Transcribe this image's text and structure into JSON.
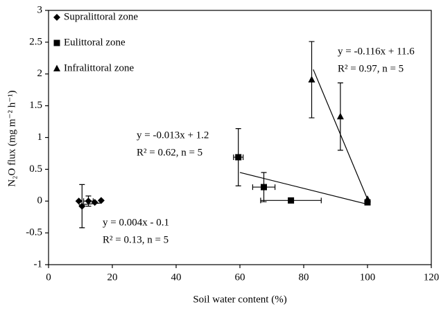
{
  "chart_data": {
    "type": "scatter",
    "xlabel": "Soil water content (%)",
    "ylabel": "N₂O flux (mg m⁻² h⁻¹)",
    "xlim": [
      0,
      120
    ],
    "xticks": [
      0,
      20,
      40,
      60,
      80,
      100,
      120
    ],
    "ylim": [
      -1,
      3
    ],
    "yticks": [
      -1,
      -0.5,
      0,
      0.5,
      1,
      1.5,
      2,
      2.5,
      3
    ],
    "series": [
      {
        "name": "Supralittoral zone",
        "marker": "diamond",
        "color": "#000000",
        "x": [
          9.5,
          10.5,
          12.5,
          14.5,
          16.5
        ],
        "values": [
          0.0,
          -0.08,
          0.0,
          -0.02,
          0.01
        ],
        "xerr": [
          null,
          null,
          1.5,
          null,
          null
        ],
        "yerr": [
          null,
          0.34,
          0.08,
          null,
          null
        ],
        "fit_x": [
          9.5,
          16.5
        ],
        "fit_y": [
          -0.06,
          -0.03
        ],
        "annotation": [
          "y = 0.004x - 0.1",
          "R² = 0.13, n = 5"
        ]
      },
      {
        "name": "Eulittoral zone",
        "marker": "square",
        "color": "#000000",
        "x": [
          59.5,
          67.5,
          76,
          100
        ],
        "values": [
          0.69,
          0.22,
          0.01,
          -0.02
        ],
        "xerr": [
          1.5,
          3.5,
          9.5,
          null
        ],
        "yerr": [
          0.45,
          0.23,
          null,
          null
        ],
        "fit_x": [
          60,
          100
        ],
        "fit_y": [
          0.45,
          -0.05
        ],
        "annotation": [
          "y = -0.013x + 1.2",
          "R² = 0.62, n = 5"
        ]
      },
      {
        "name": "Infralittoral zone",
        "marker": "triangle",
        "color": "#000000",
        "x": [
          82.5,
          91.5,
          100
        ],
        "values": [
          1.91,
          1.33,
          0.03
        ],
        "xerr": [
          null,
          null,
          null
        ],
        "yerr": [
          0.6,
          0.53,
          null
        ],
        "fit_x": [
          83,
          100
        ],
        "fit_y": [
          2.07,
          0.03
        ],
        "annotation": [
          "y = -0.116x + 11.6",
          "R² = 0.97, n = 5"
        ]
      }
    ]
  }
}
